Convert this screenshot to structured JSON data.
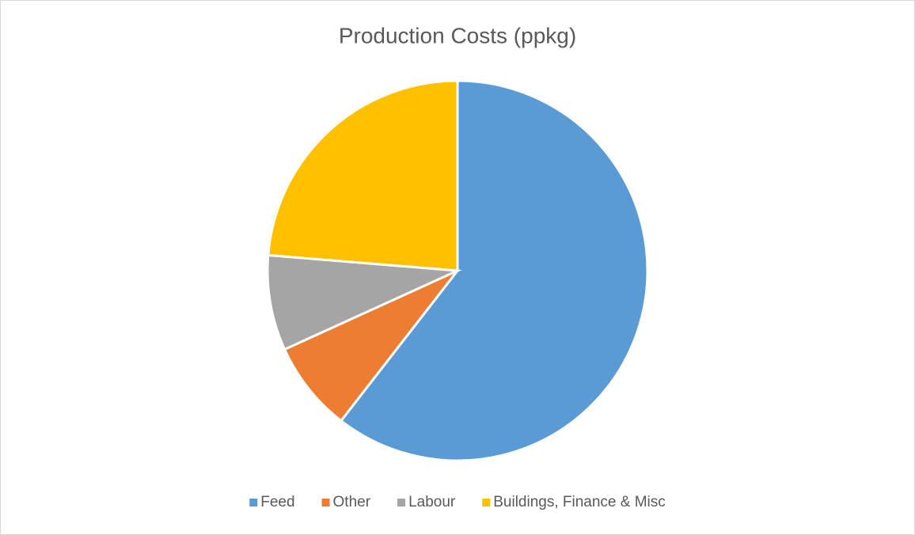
{
  "chart_data": {
    "type": "pie",
    "title": "Production Costs (ppkg)",
    "categories": [
      "Feed",
      "Other",
      "Labour",
      "Buildings, Finance & Misc"
    ],
    "values": [
      60.5,
      7.7,
      8.1,
      23.7
    ],
    "colors": [
      "#5b9bd5",
      "#ed7d31",
      "#a5a5a5",
      "#ffc000"
    ],
    "legend": "bottom"
  }
}
